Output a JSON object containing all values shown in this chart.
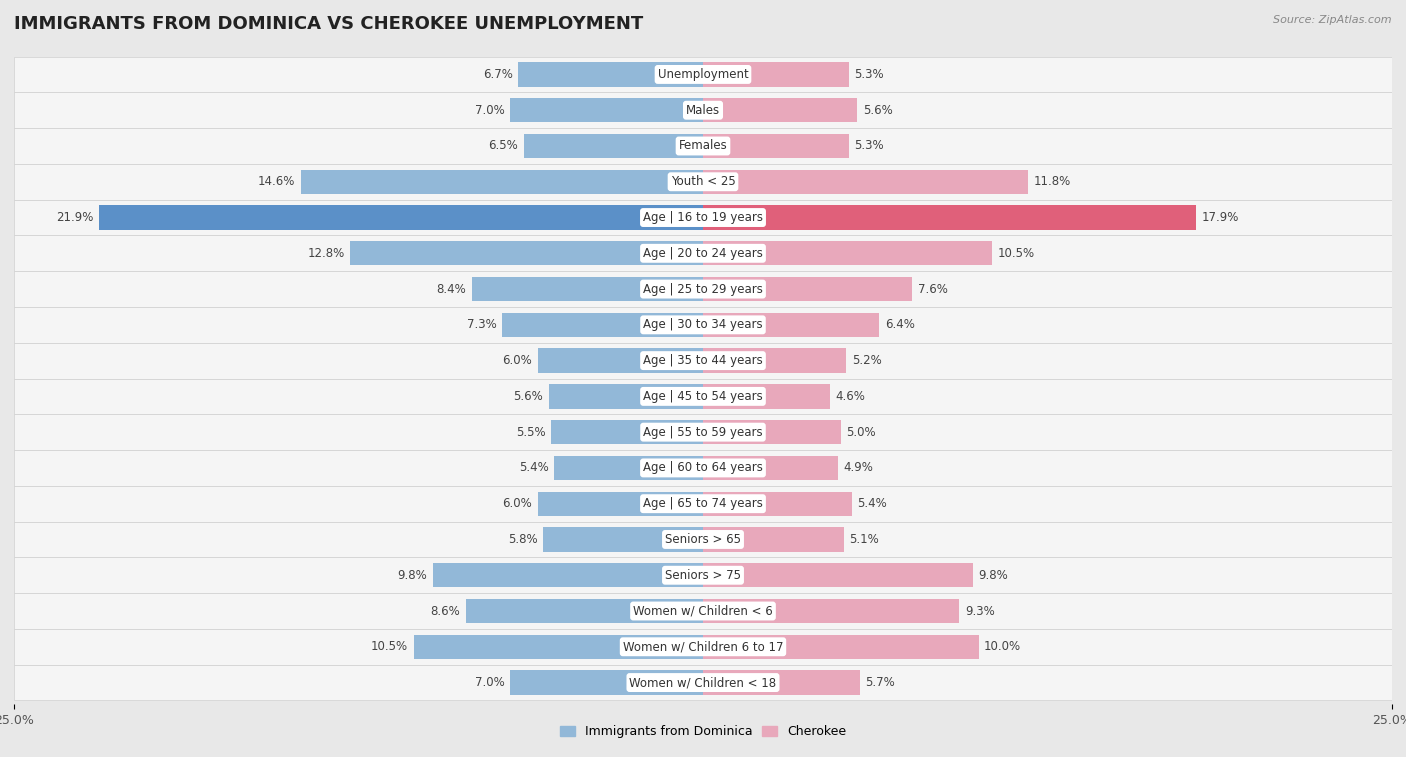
{
  "title": "IMMIGRANTS FROM DOMINICA VS CHEROKEE UNEMPLOYMENT",
  "source": "Source: ZipAtlas.com",
  "categories": [
    "Unemployment",
    "Males",
    "Females",
    "Youth < 25",
    "Age | 16 to 19 years",
    "Age | 20 to 24 years",
    "Age | 25 to 29 years",
    "Age | 30 to 34 years",
    "Age | 35 to 44 years",
    "Age | 45 to 54 years",
    "Age | 55 to 59 years",
    "Age | 60 to 64 years",
    "Age | 65 to 74 years",
    "Seniors > 65",
    "Seniors > 75",
    "Women w/ Children < 6",
    "Women w/ Children 6 to 17",
    "Women w/ Children < 18"
  ],
  "dominica_values": [
    6.7,
    7.0,
    6.5,
    14.6,
    21.9,
    12.8,
    8.4,
    7.3,
    6.0,
    5.6,
    5.5,
    5.4,
    6.0,
    5.8,
    9.8,
    8.6,
    10.5,
    7.0
  ],
  "cherokee_values": [
    5.3,
    5.6,
    5.3,
    11.8,
    17.9,
    10.5,
    7.6,
    6.4,
    5.2,
    4.6,
    5.0,
    4.9,
    5.4,
    5.1,
    9.8,
    9.3,
    10.0,
    5.7
  ],
  "dominica_color": "#92b8d8",
  "cherokee_color": "#e8a8bb",
  "dominica_highlight_color": "#5b90c8",
  "cherokee_highlight_color": "#e0607a",
  "axis_limit": 25.0,
  "background_color": "#e8e8e8",
  "row_bg_color": "#f5f5f5",
  "row_border_color": "#d0d0d0",
  "title_fontsize": 13,
  "label_fontsize": 8.5,
  "value_fontsize": 8.5
}
